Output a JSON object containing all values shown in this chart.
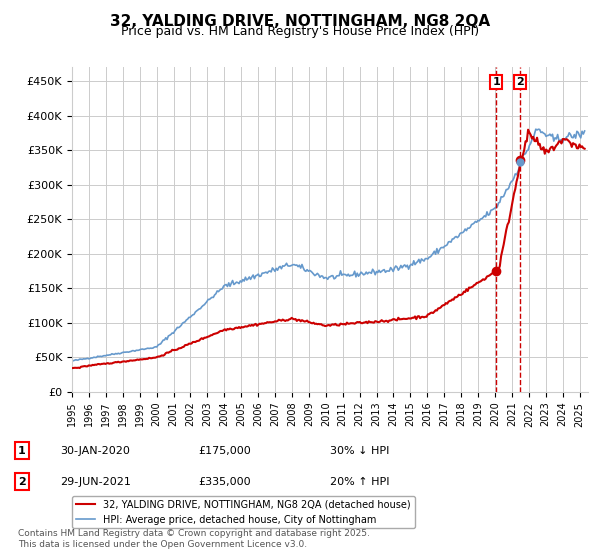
{
  "title_line1": "32, YALDING DRIVE, NOTTINGHAM, NG8 2QA",
  "title_line2": "Price paid vs. HM Land Registry's House Price Index (HPI)",
  "ylabel_ticks": [
    "£0",
    "£50K",
    "£100K",
    "£150K",
    "£200K",
    "£250K",
    "£300K",
    "£350K",
    "£400K",
    "£450K"
  ],
  "ytick_values": [
    0,
    50000,
    100000,
    150000,
    200000,
    250000,
    300000,
    350000,
    400000,
    450000
  ],
  "ylim": [
    0,
    470000
  ],
  "xlim_start": 1995.0,
  "xlim_end": 2025.5,
  "xtick_years": [
    1995,
    1996,
    1997,
    1998,
    1999,
    2000,
    2001,
    2002,
    2003,
    2004,
    2005,
    2006,
    2007,
    2008,
    2009,
    2010,
    2011,
    2012,
    2013,
    2014,
    2015,
    2016,
    2017,
    2018,
    2019,
    2020,
    2021,
    2022,
    2023,
    2024,
    2025
  ],
  "red_line_color": "#cc0000",
  "blue_line_color": "#6699cc",
  "marker_color_red": "#cc0000",
  "marker_color_blue": "#6699cc",
  "event1_x": 2020.08,
  "event1_y_red": 175000,
  "event2_x": 2021.49,
  "event2_y_red": 335000,
  "legend_label_red": "32, YALDING DRIVE, NOTTINGHAM, NG8 2QA (detached house)",
  "legend_label_blue": "HPI: Average price, detached house, City of Nottingham",
  "table_rows": [
    {
      "num": "1",
      "date": "30-JAN-2020",
      "price": "£175,000",
      "change": "30% ↓ HPI"
    },
    {
      "num": "2",
      "date": "29-JUN-2021",
      "price": "£335,000",
      "change": "20% ↑ HPI"
    }
  ],
  "footnote": "Contains HM Land Registry data © Crown copyright and database right 2025.\nThis data is licensed under the Open Government Licence v3.0.",
  "bg_color": "#ffffff",
  "grid_color": "#cccccc"
}
